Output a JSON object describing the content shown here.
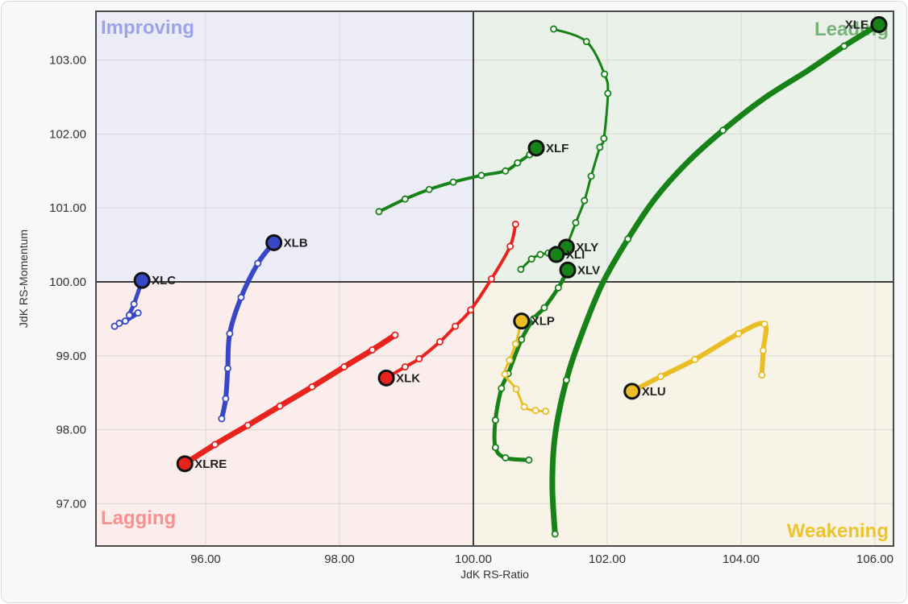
{
  "card": {
    "title": ""
  },
  "chart_data": {
    "type": "scatter",
    "subtype": "relative-rotation-graph",
    "title": "",
    "xlabel": "JdK RS-Ratio",
    "ylabel": "JdK RS-Momentum",
    "xlim": [
      94.36,
      106.28
    ],
    "ylim": [
      96.43,
      103.66
    ],
    "center": [
      100.0,
      100.0
    ],
    "grid": true,
    "x_ticks": [
      "96.00",
      "98.00",
      "100.00",
      "102.00",
      "104.00",
      "106.00"
    ],
    "y_ticks": [
      "103.00",
      "102.00",
      "101.00",
      "100.00",
      "99.00",
      "98.00",
      "97.00"
    ],
    "axis_text_color": "#333333",
    "grid_color": "#d8d8d8",
    "crosshair_color": "#3c3c3c",
    "plot_border_color": "#4a4a4a",
    "marker_ring_color": "#111111",
    "quadrants": [
      {
        "name": "Improving",
        "position": "top-left",
        "label_color": "#9ba5e6",
        "bg_color": "#ececf6"
      },
      {
        "name": "Leading",
        "position": "top-right",
        "label_color": "#79b279",
        "bg_color": "#e9f1e9"
      },
      {
        "name": "Lagging",
        "position": "bottom-left",
        "label_color": "#f9908f",
        "bg_color": "#faedeb"
      },
      {
        "name": "Weakening",
        "position": "bottom-right",
        "label_color": "#eec42d",
        "bg_color": "#f7f3e7"
      }
    ],
    "series": [
      {
        "symbol": "XLE",
        "color": "#178217",
        "width": 7,
        "dot_every": 3,
        "label_side": "left",
        "points": [
          [
            101.22,
            96.59
          ],
          [
            101.18,
            97.25
          ],
          [
            101.22,
            97.92
          ],
          [
            101.39,
            98.67
          ],
          [
            101.63,
            99.32
          ],
          [
            101.93,
            99.98
          ],
          [
            102.31,
            100.58
          ],
          [
            102.71,
            101.12
          ],
          [
            103.19,
            101.61
          ],
          [
            103.73,
            102.05
          ],
          [
            104.34,
            102.48
          ],
          [
            105.0,
            102.86
          ],
          [
            105.54,
            103.19
          ],
          [
            106.06,
            103.48
          ]
        ]
      },
      {
        "symbol": "XLV",
        "color": "#178217",
        "width": 5,
        "dot_every": 1,
        "label_side": "right",
        "points": [
          [
            100.83,
            97.59
          ],
          [
            100.48,
            97.62
          ],
          [
            100.33,
            97.76
          ],
          [
            100.33,
            98.13
          ],
          [
            100.42,
            98.56
          ],
          [
            100.52,
            98.76
          ],
          [
            100.72,
            99.22
          ],
          [
            100.9,
            99.5
          ],
          [
            101.06,
            99.65
          ],
          [
            101.27,
            99.92
          ],
          [
            101.41,
            100.16
          ]
        ]
      },
      {
        "symbol": "XLY",
        "color": "#178217",
        "width": 3,
        "dot_every": 1,
        "label_side": "right",
        "points": [
          [
            101.2,
            103.42
          ],
          [
            101.69,
            103.25
          ],
          [
            101.96,
            102.81
          ],
          [
            102.01,
            102.55
          ],
          [
            101.95,
            101.94
          ],
          [
            101.89,
            101.82
          ],
          [
            101.76,
            101.43
          ],
          [
            101.66,
            101.1
          ],
          [
            101.53,
            100.8
          ],
          [
            101.39,
            100.47
          ]
        ]
      },
      {
        "symbol": "XLF",
        "color": "#178217",
        "width": 4,
        "dot_every": 1,
        "label_side": "right",
        "points": [
          [
            98.59,
            100.95
          ],
          [
            98.98,
            101.12
          ],
          [
            99.34,
            101.25
          ],
          [
            99.7,
            101.35
          ],
          [
            100.12,
            101.44
          ],
          [
            100.48,
            101.5
          ],
          [
            100.66,
            101.61
          ],
          [
            100.84,
            101.72
          ],
          [
            100.94,
            101.81
          ]
        ]
      },
      {
        "symbol": "XLI",
        "color": "#178217",
        "width": 3,
        "dot_every": 1,
        "label_side": "right",
        "points": [
          [
            100.71,
            100.17
          ],
          [
            100.87,
            100.31
          ],
          [
            101.0,
            100.37
          ],
          [
            101.12,
            100.39
          ],
          [
            101.23,
            100.44
          ],
          [
            101.24,
            100.37
          ]
        ]
      },
      {
        "symbol": "XLRE",
        "color": "#e8221c",
        "width": 7,
        "dot_every": 1,
        "label_side": "right",
        "points": [
          [
            98.83,
            99.28
          ],
          [
            98.49,
            99.08
          ],
          [
            98.07,
            98.85
          ],
          [
            97.59,
            98.58
          ],
          [
            97.11,
            98.32
          ],
          [
            96.63,
            98.06
          ],
          [
            96.14,
            97.8
          ],
          [
            95.69,
            97.54
          ]
        ]
      },
      {
        "symbol": "XLK",
        "color": "#e8221c",
        "width": 4,
        "dot_every": 1,
        "label_side": "right",
        "points": [
          [
            100.63,
            100.78
          ],
          [
            100.55,
            100.48
          ],
          [
            100.27,
            100.04
          ],
          [
            99.96,
            99.62
          ],
          [
            99.73,
            99.4
          ],
          [
            99.5,
            99.19
          ],
          [
            99.19,
            98.96
          ],
          [
            98.98,
            98.85
          ],
          [
            98.7,
            98.7
          ]
        ]
      },
      {
        "symbol": "XLB",
        "color": "#3847c6",
        "width": 6,
        "dot_every": 1,
        "label_side": "right",
        "points": [
          [
            96.24,
            98.15
          ],
          [
            96.3,
            98.42
          ],
          [
            96.33,
            98.83
          ],
          [
            96.36,
            99.3
          ],
          [
            96.53,
            99.79
          ],
          [
            96.78,
            100.25
          ],
          [
            97.02,
            100.53
          ]
        ]
      },
      {
        "symbol": "XLC",
        "color": "#3847c6",
        "width": 5,
        "dot_every": 1,
        "label_side": "right",
        "points": [
          [
            94.64,
            99.4
          ],
          [
            94.71,
            99.44
          ],
          [
            94.8,
            99.47
          ],
          [
            94.99,
            99.58
          ],
          [
            94.86,
            99.55
          ],
          [
            94.93,
            99.7
          ],
          [
            95.05,
            100.02
          ]
        ]
      },
      {
        "symbol": "XLP",
        "color": "#e9bd23",
        "width": 3,
        "dot_every": 1,
        "label_side": "right",
        "points": [
          [
            101.08,
            98.25
          ],
          [
            100.93,
            98.26
          ],
          [
            100.76,
            98.31
          ],
          [
            100.64,
            98.55
          ],
          [
            100.47,
            98.75
          ],
          [
            100.54,
            98.94
          ],
          [
            100.63,
            99.16
          ],
          [
            100.72,
            99.47
          ]
        ]
      },
      {
        "symbol": "XLU",
        "color": "#e9bd23",
        "width": 6,
        "dot_every": 1,
        "label_side": "right",
        "points": [
          [
            104.31,
            98.74
          ],
          [
            104.33,
            99.07
          ],
          [
            104.35,
            99.43
          ],
          [
            103.96,
            99.3
          ],
          [
            103.31,
            98.95
          ],
          [
            102.8,
            98.72
          ],
          [
            102.37,
            98.52
          ]
        ]
      }
    ]
  }
}
